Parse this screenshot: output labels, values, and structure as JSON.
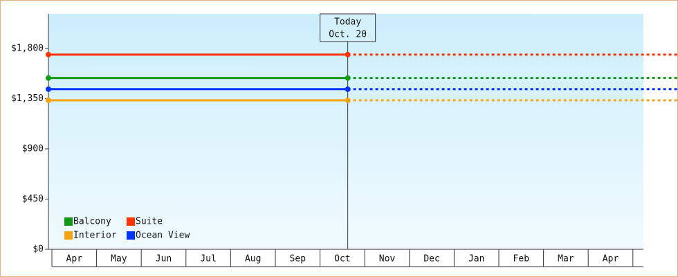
{
  "chart_data": {
    "type": "line",
    "categories": [
      "Apr",
      "May",
      "Jun",
      "Jul",
      "Aug",
      "Sep",
      "Oct",
      "Nov",
      "Dec",
      "Jan",
      "Feb",
      "Mar",
      "Apr"
    ],
    "ylim": [
      0,
      2110
    ],
    "yticks": [
      {
        "value": 0,
        "label": "$0"
      },
      {
        "value": 450,
        "label": "$450"
      },
      {
        "value": 900,
        "label": "$900"
      },
      {
        "value": 1350,
        "label": "$1,350"
      },
      {
        "value": 1800,
        "label": "$1,800"
      }
    ],
    "today": {
      "label": "Today",
      "date": "Oct. 20"
    },
    "series": [
      {
        "name": "Balcony",
        "color": "#119911",
        "value": 1535
      },
      {
        "name": "Suite",
        "color": "#ff3300",
        "value": 1745
      },
      {
        "name": "Interior",
        "color": "#f5a511",
        "value": 1335
      },
      {
        "name": "Ocean View",
        "color": "#0033ff",
        "value": 1435
      }
    ]
  }
}
